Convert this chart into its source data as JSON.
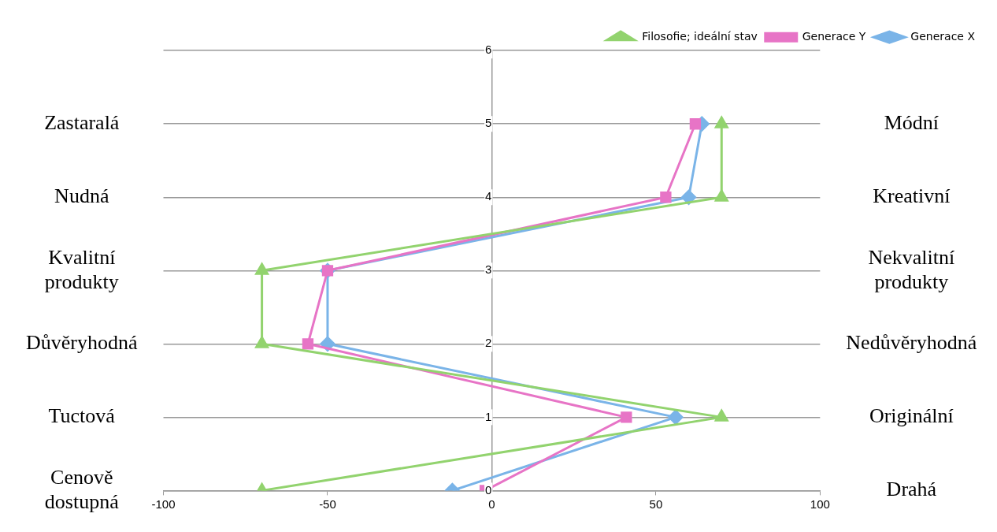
{
  "chart_data": {
    "type": "line",
    "series": [
      {
        "name": "Generace X",
        "color": "#7ab4e8",
        "marker": "diamond",
        "x": [
          64,
          60,
          -50,
          -50,
          56,
          -12
        ],
        "values": [
          5,
          4,
          3,
          2,
          1,
          0
        ]
      },
      {
        "name": "Generace Y",
        "color": "#e774c6",
        "marker": "square",
        "x": [
          62,
          53,
          -50,
          -56,
          41,
          -2
        ],
        "values": [
          5,
          4,
          3,
          2,
          1,
          0
        ]
      },
      {
        "name": "Filosofie; ideální stav",
        "color": "#92d36e",
        "marker": "triangle",
        "x": [
          70,
          70,
          -70,
          -70,
          70,
          -70
        ],
        "values": [
          5,
          4,
          3,
          2,
          1,
          0
        ]
      }
    ],
    "xlim": [
      -100,
      100
    ],
    "xticks": [
      -100,
      -50,
      0,
      50,
      100
    ],
    "ylim": [
      0,
      6
    ],
    "yticks": [
      0,
      1,
      2,
      3,
      4,
      5,
      6
    ],
    "y_categories": [
      null,
      "Zastaralá",
      "Nudná",
      "Kvalitní\nprodukty",
      "Důvěryhodná",
      "Tuctová",
      "Cenově\ndostupná"
    ],
    "y2_categories": [
      null,
      "Módní",
      "Kreativní",
      "Nekvalitní\nprodukty",
      "Nedůvěryhodná",
      "Originální",
      "Drahá"
    ],
    "grid": "y",
    "legend": "top"
  }
}
